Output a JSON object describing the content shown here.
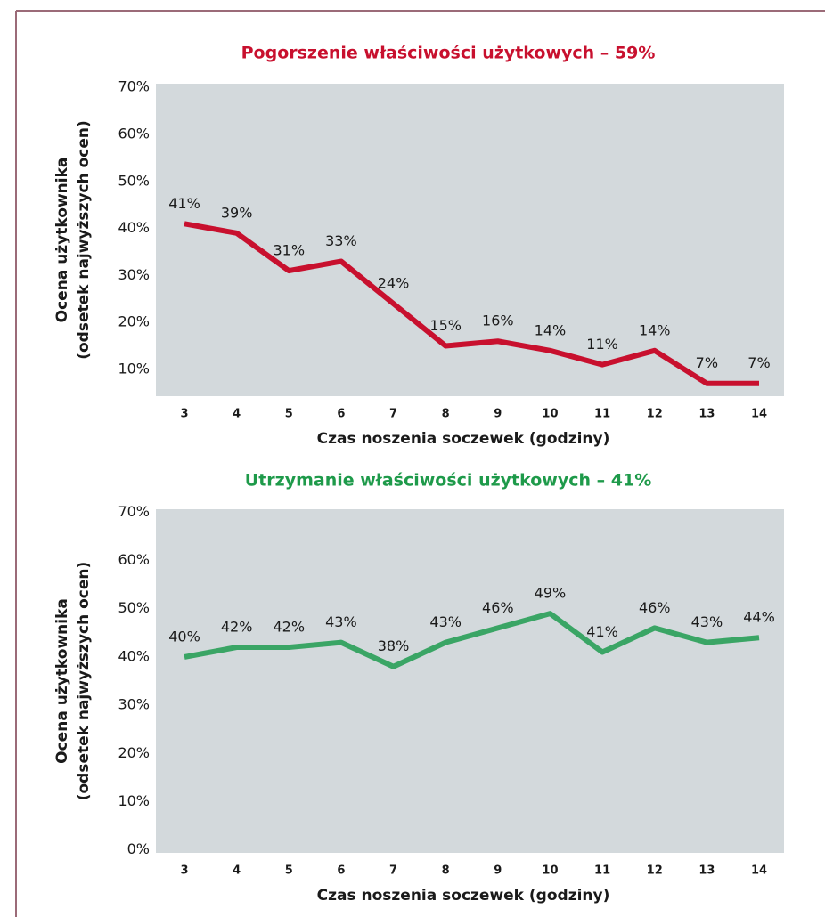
{
  "chart_data": [
    {
      "type": "line",
      "title": "Pogorszenie właściwości użytkowych – 59%",
      "ylabel": [
        "Ocena użytkownika",
        "(odsetek najwyższych ocen)"
      ],
      "xlabel": "Czas noszenia soczewek (godziny)",
      "categories": [
        "3",
        "4",
        "5",
        "6",
        "7",
        "8",
        "9",
        "10",
        "11",
        "12",
        "13",
        "14"
      ],
      "series": [
        {
          "name": "Pogorszenie",
          "color": "#c8102e",
          "values": [
            41,
            39,
            31,
            33,
            24,
            15,
            16,
            14,
            11,
            14,
            7,
            7
          ],
          "value_labels": [
            "41%",
            "39%",
            "31%",
            "33%",
            "24%",
            "15%",
            "16%",
            "14%",
            "11%",
            "14%",
            "7%",
            "7%"
          ]
        }
      ],
      "ylim": [
        4.3,
        70.8
      ],
      "yticks": [
        {
          "value": 10,
          "label": "10%"
        },
        {
          "value": 20,
          "label": "20%"
        },
        {
          "value": 30,
          "label": "30%"
        },
        {
          "value": 40,
          "label": "40%"
        },
        {
          "value": 50,
          "label": "50%"
        },
        {
          "value": 60,
          "label": "60%"
        },
        {
          "value": 70,
          "label": "70%"
        }
      ],
      "title_color": "#c8102e",
      "grid": false
    },
    {
      "type": "line",
      "title": "Utrzymanie właściwości użytkowych – 41%",
      "ylabel": [
        "Ocena użytkownika",
        "(odsetek najwyższych ocen)"
      ],
      "xlabel": "Czas noszenia soczewek (godziny)",
      "categories": [
        "3",
        "4",
        "5",
        "6",
        "7",
        "8",
        "9",
        "10",
        "11",
        "12",
        "13",
        "14"
      ],
      "series": [
        {
          "name": "Utrzymanie",
          "color": "#3aa565",
          "values": [
            40,
            42,
            42,
            43,
            38,
            43,
            46,
            49,
            41,
            46,
            43,
            44
          ],
          "value_labels": [
            "40%",
            "42%",
            "42%",
            "43%",
            "38%",
            "43%",
            "46%",
            "49%",
            "41%",
            "46%",
            "43%",
            "44%"
          ]
        }
      ],
      "ylim": [
        -0.6,
        70.6
      ],
      "yticks": [
        {
          "value": 0,
          "label": "0%"
        },
        {
          "value": 10,
          "label": "10%"
        },
        {
          "value": 20,
          "label": "20%"
        },
        {
          "value": 30,
          "label": "30%"
        },
        {
          "value": 40,
          "label": "40%"
        },
        {
          "value": 50,
          "label": "50%"
        },
        {
          "value": 60,
          "label": "60%"
        },
        {
          "value": 70,
          "label": "70%"
        }
      ],
      "title_color": "#1e9a4a",
      "grid": false
    }
  ]
}
